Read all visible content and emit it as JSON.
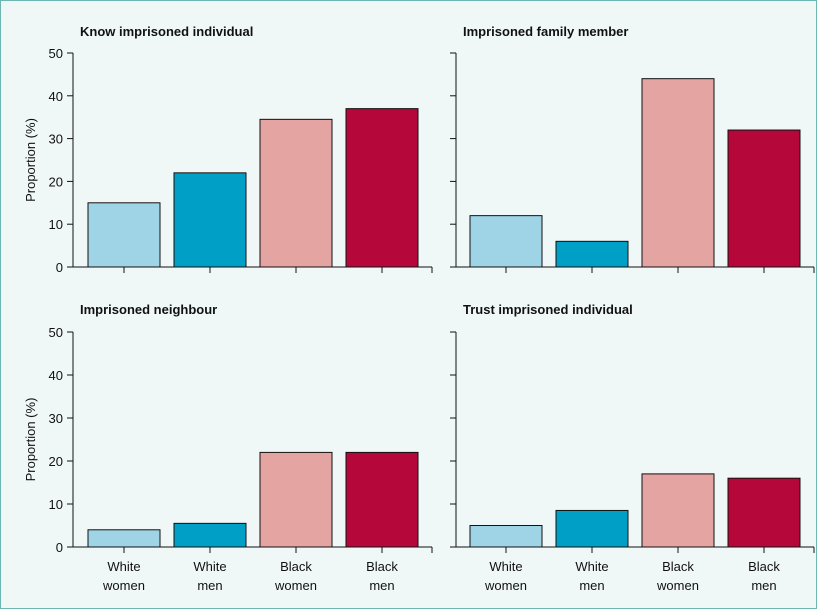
{
  "colors": {
    "background": "#f0f8f7",
    "border": "#6fb6b2",
    "series": [
      "#9fd4e6",
      "#00a0c6",
      "#e3a4a2",
      "#b5073a"
    ]
  },
  "chart_data": [
    {
      "type": "bar",
      "title": "Know imprisoned individual",
      "categories": [
        "White women",
        "White men",
        "Black women",
        "Black men"
      ],
      "category_lines": [
        [
          "White",
          "women"
        ],
        [
          "White",
          "men"
        ],
        [
          "Black",
          "women"
        ],
        [
          "Black",
          "men"
        ]
      ],
      "values": [
        15,
        22,
        34.5,
        37
      ],
      "ylabel": "Proportion (%)",
      "xlabel": "",
      "ylim": [
        0,
        50
      ],
      "yticks": [
        0,
        10,
        20,
        30,
        40,
        50
      ],
      "grid": false,
      "show_category_labels": false
    },
    {
      "type": "bar",
      "title": "Imprisoned family member",
      "categories": [
        "White women",
        "White men",
        "Black women",
        "Black men"
      ],
      "category_lines": [
        [
          "White",
          "women"
        ],
        [
          "White",
          "men"
        ],
        [
          "Black",
          "women"
        ],
        [
          "Black",
          "men"
        ]
      ],
      "values": [
        12,
        6,
        44,
        32
      ],
      "ylabel": "",
      "xlabel": "",
      "ylim": [
        0,
        50
      ],
      "yticks": [
        0,
        10,
        20,
        30,
        40,
        50
      ],
      "grid": false,
      "show_category_labels": false
    },
    {
      "type": "bar",
      "title": "Imprisoned neighbour",
      "categories": [
        "White women",
        "White men",
        "Black women",
        "Black men"
      ],
      "category_lines": [
        [
          "White",
          "women"
        ],
        [
          "White",
          "men"
        ],
        [
          "Black",
          "women"
        ],
        [
          "Black",
          "men"
        ]
      ],
      "values": [
        4,
        5.5,
        22,
        22
      ],
      "ylabel": "Proportion (%)",
      "xlabel": "",
      "ylim": [
        0,
        50
      ],
      "yticks": [
        0,
        10,
        20,
        30,
        40,
        50
      ],
      "grid": false,
      "show_category_labels": true
    },
    {
      "type": "bar",
      "title": "Trust imprisoned individual",
      "categories": [
        "White women",
        "White men",
        "Black women",
        "Black men"
      ],
      "category_lines": [
        [
          "White",
          "women"
        ],
        [
          "White",
          "men"
        ],
        [
          "Black",
          "women"
        ],
        [
          "Black",
          "men"
        ]
      ],
      "values": [
        5,
        8.5,
        17,
        16
      ],
      "ylabel": "",
      "xlabel": "",
      "ylim": [
        0,
        50
      ],
      "yticks": [
        0,
        10,
        20,
        30,
        40,
        50
      ],
      "grid": false,
      "show_category_labels": true
    }
  ]
}
